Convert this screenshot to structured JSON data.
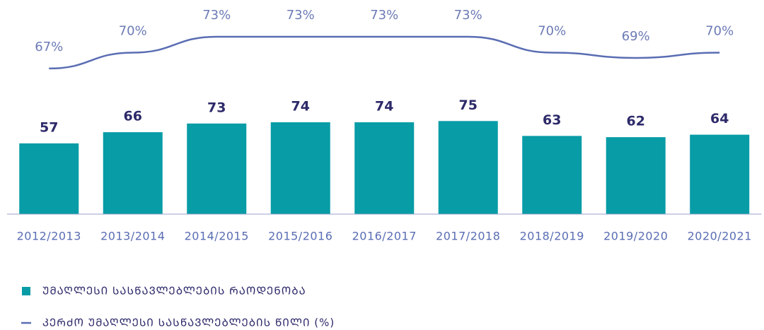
{
  "chart_data": {
    "type": "bar_line",
    "categories": [
      "2012/2013",
      "2013/2014",
      "2014/2015",
      "2015/2016",
      "2016/2017",
      "2017/2018",
      "2018/2019",
      "2019/2020",
      "2020/2021"
    ],
    "ylim": [
      0,
      160
    ],
    "y2lim": [
      39.5,
      77
    ],
    "series": [
      {
        "name": "ᲣᲛᲐᲦᲚᲔᲡᲘ ᲡᲐᲡᲬᲐᲕᲚᲔᲑᲚᲔᲑᲘᲡ ᲠᲐᲝᲓᲔᲜᲝᲑᲐ",
        "type": "bar",
        "color": "#079ca6",
        "values": [
          57,
          66,
          73,
          74,
          74,
          75,
          63,
          62,
          64
        ]
      },
      {
        "name": "ᲙᲔᲠᲫᲝ ᲣᲛᲐᲦᲚᲔᲡᲘ ᲡᲐᲡᲬᲐᲕᲚᲔᲑᲚᲔᲑᲘᲡ ᲬᲘᲚᲘ (%)",
        "type": "line",
        "axis": "y2",
        "color": "#5a6db3",
        "values": [
          67,
          70,
          73,
          73,
          73,
          73,
          70,
          69,
          70
        ],
        "value_labels": [
          "67%",
          "70%",
          "73%",
          "73%",
          "73%",
          "73%",
          "70%",
          "69%",
          "70%"
        ]
      }
    ],
    "legend": "bottom-left"
  }
}
